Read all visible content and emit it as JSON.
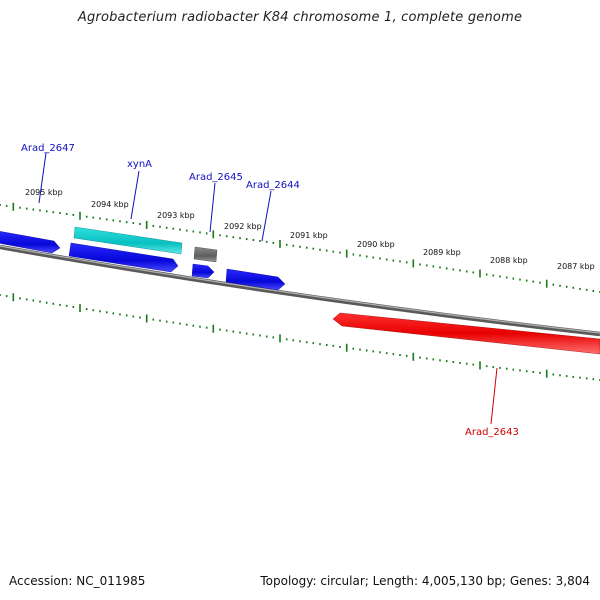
{
  "title": "Agrobacterium radiobacter K84 chromosome 1, complete genome",
  "footer": {
    "accession": "Accession: NC_011985",
    "summary": "Topology: circular; Length: 4,005,130 bp; Genes: 3,804"
  },
  "colors": {
    "tick": "#1a7a1a",
    "backbone": "#7a7a7a",
    "forward_gene": "#1010e0",
    "highlight_gene": "#10c8c8",
    "other_gene": "#707070",
    "reverse_gene": "#ee0000",
    "forward_label": "#1010c0",
    "reverse_label": "#cc0000"
  },
  "scale_labels": [
    "2095 kbp",
    "2094 kbp",
    "2093 kbp",
    "2092 kbp",
    "2091 kbp",
    "2090 kbp",
    "2089 kbp",
    "2088 kbp",
    "2087 kbp"
  ],
  "gene_labels": [
    {
      "name": "Arad_2647",
      "strand": "forward"
    },
    {
      "name": "xynA",
      "strand": "forward"
    },
    {
      "name": "Arad_2645",
      "strand": "forward"
    },
    {
      "name": "Arad_2644",
      "strand": "forward"
    },
    {
      "name": "Arad_2643",
      "strand": "reverse"
    }
  ]
}
